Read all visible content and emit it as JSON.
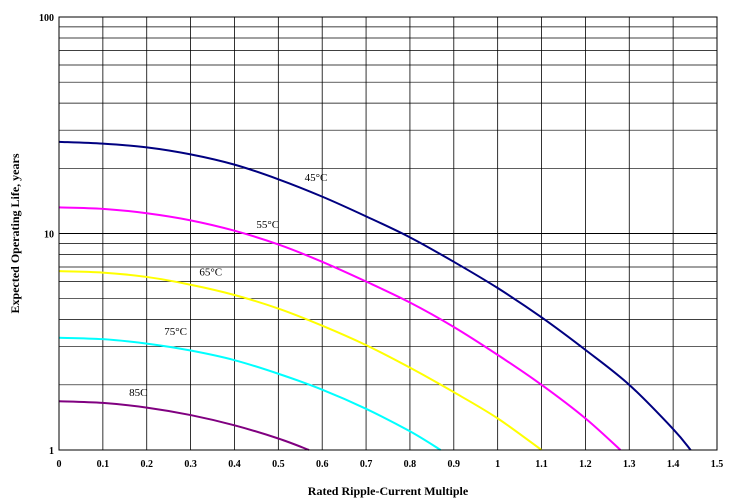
{
  "chart_data": {
    "type": "line",
    "title": "",
    "xlabel": "Rated Ripple-Current Multiple",
    "ylabel": "Expected Operating Life, years",
    "xlim": [
      0,
      1.5
    ],
    "ylim": [
      1,
      100
    ],
    "y_scale": "log",
    "grid": true,
    "legend": "none",
    "x_ticks": [
      "0",
      "0.1",
      "0.2",
      "0.3",
      "0.4",
      "0.5",
      "0.6",
      "0.7",
      "0.8",
      "0.9",
      "1",
      "1.1",
      "1.2",
      "1.3",
      "1.4",
      "1.5"
    ],
    "y_ticks": [
      "1",
      "10",
      "100"
    ],
    "series": [
      {
        "name": "45°C",
        "color": "#000080",
        "label_at": [
          0.56,
          17.5
        ],
        "points": [
          [
            0,
            26.5
          ],
          [
            0.1,
            26
          ],
          [
            0.2,
            25
          ],
          [
            0.3,
            23.2
          ],
          [
            0.4,
            20.8
          ],
          [
            0.5,
            17.8
          ],
          [
            0.6,
            14.8
          ],
          [
            0.7,
            12
          ],
          [
            0.8,
            9.6
          ],
          [
            0.9,
            7.4
          ],
          [
            1.0,
            5.6
          ],
          [
            1.1,
            4.1
          ],
          [
            1.2,
            2.9
          ],
          [
            1.3,
            2.0
          ],
          [
            1.4,
            1.25
          ],
          [
            1.44,
            1.0
          ]
        ]
      },
      {
        "name": "55°C",
        "color": "#ff00ff",
        "label_at": [
          0.45,
          10.6
        ],
        "points": [
          [
            0,
            13.2
          ],
          [
            0.1,
            13
          ],
          [
            0.2,
            12.4
          ],
          [
            0.3,
            11.5
          ],
          [
            0.4,
            10.3
          ],
          [
            0.5,
            8.9
          ],
          [
            0.6,
            7.4
          ],
          [
            0.7,
            6.0
          ],
          [
            0.8,
            4.8
          ],
          [
            0.9,
            3.7
          ],
          [
            1.0,
            2.75
          ],
          [
            1.1,
            2.0
          ],
          [
            1.2,
            1.4
          ],
          [
            1.28,
            1.0
          ]
        ]
      },
      {
        "name": "65°C",
        "color": "#ffff00",
        "label_at": [
          0.32,
          6.4
        ],
        "points": [
          [
            0,
            6.7
          ],
          [
            0.1,
            6.6
          ],
          [
            0.2,
            6.3
          ],
          [
            0.3,
            5.8
          ],
          [
            0.4,
            5.2
          ],
          [
            0.5,
            4.5
          ],
          [
            0.6,
            3.75
          ],
          [
            0.7,
            3.05
          ],
          [
            0.8,
            2.4
          ],
          [
            0.9,
            1.85
          ],
          [
            1.0,
            1.4
          ],
          [
            1.1,
            1.0
          ]
        ]
      },
      {
        "name": "75°C",
        "color": "#00ffff",
        "label_at": [
          0.24,
          3.4
        ],
        "points": [
          [
            0,
            3.3
          ],
          [
            0.1,
            3.25
          ],
          [
            0.2,
            3.1
          ],
          [
            0.3,
            2.88
          ],
          [
            0.4,
            2.6
          ],
          [
            0.5,
            2.25
          ],
          [
            0.6,
            1.9
          ],
          [
            0.7,
            1.55
          ],
          [
            0.8,
            1.22
          ],
          [
            0.87,
            1.0
          ]
        ]
      },
      {
        "name": "85C",
        "color": "#800080",
        "label_at": [
          0.16,
          1.78
        ],
        "points": [
          [
            0,
            1.68
          ],
          [
            0.1,
            1.65
          ],
          [
            0.2,
            1.57
          ],
          [
            0.3,
            1.45
          ],
          [
            0.4,
            1.3
          ],
          [
            0.5,
            1.13
          ],
          [
            0.57,
            1.0
          ]
        ]
      }
    ]
  }
}
